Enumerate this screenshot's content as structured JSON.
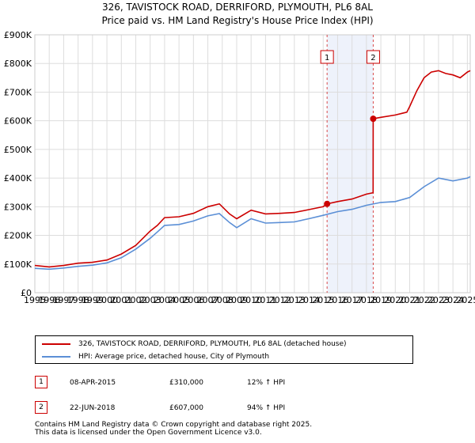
{
  "chart_data": {
    "type": "line",
    "title": "326, TAVISTOCK ROAD, DERRIFORD, PLYMOUTH, PL6 8AL",
    "subtitle": "Price paid vs. HM Land Registry's House Price Index (HPI)",
    "xlim": [
      1995,
      2025.2
    ],
    "ylim": [
      0,
      900000
    ],
    "x_ticks": [
      1995,
      1996,
      1997,
      1998,
      1999,
      2000,
      2001,
      2002,
      2003,
      2004,
      2005,
      2006,
      2007,
      2008,
      2009,
      2010,
      2011,
      2012,
      2013,
      2014,
      2015,
      2016,
      2017,
      2018,
      2019,
      2020,
      2021,
      2022,
      2023,
      2024,
      2025
    ],
    "y_ticks": [
      {
        "value": 0,
        "label": "£0"
      },
      {
        "value": 100000,
        "label": "£100K"
      },
      {
        "value": 200000,
        "label": "£200K"
      },
      {
        "value": 300000,
        "label": "£300K"
      },
      {
        "value": 400000,
        "label": "£400K"
      },
      {
        "value": 500000,
        "label": "£500K"
      },
      {
        "value": 600000,
        "label": "£600K"
      },
      {
        "value": 700000,
        "label": "£700K"
      },
      {
        "value": 800000,
        "label": "£800K"
      },
      {
        "value": 900000,
        "label": "£900K"
      }
    ],
    "grid": true,
    "shaded_region": [
      2015.27,
      2018.47
    ],
    "series": [
      {
        "name": "326, TAVISTOCK ROAD, DERRIFORD, PLYMOUTH, PL6 8AL (detached house)",
        "color": "#cc0000",
        "x": [
          1995,
          1996,
          1997,
          1998,
          1999,
          2000,
          2001,
          2002,
          2003,
          2003.5,
          2004,
          2005,
          2006,
          2007,
          2007.8,
          2008.5,
          2009,
          2010,
          2011,
          2012,
          2013,
          2014,
          2015,
          2015.27,
          2016,
          2017,
          2018,
          2018.46,
          2018.47,
          2019,
          2020,
          2020.8,
          2021,
          2021.5,
          2022,
          2022.5,
          2023,
          2023.5,
          2024,
          2024.5,
          2025,
          2025.2
        ],
        "y": [
          95000,
          90000,
          95000,
          103000,
          106000,
          114000,
          135000,
          165000,
          215000,
          235000,
          262000,
          265000,
          277000,
          300000,
          310000,
          275000,
          258000,
          288000,
          275000,
          277000,
          280000,
          290000,
          300000,
          310000,
          318000,
          327000,
          344000,
          349000,
          607000,
          612000,
          620000,
          630000,
          650000,
          705000,
          750000,
          770000,
          775000,
          765000,
          760000,
          750000,
          770000,
          775000
        ]
      },
      {
        "name": "HPI: Average price, detached house, City of Plymouth",
        "color": "#5b8fd6",
        "x": [
          1995,
          1996,
          1997,
          1998,
          1999,
          2000,
          2001,
          2002,
          2003,
          2003.5,
          2004,
          2005,
          2006,
          2007,
          2007.8,
          2008.5,
          2009,
          2010,
          2011,
          2012,
          2013,
          2014,
          2015,
          2016,
          2017,
          2018,
          2019,
          2020,
          2021,
          2022,
          2023,
          2024,
          2025,
          2025.2
        ],
        "y": [
          85000,
          82000,
          86000,
          92000,
          96000,
          104000,
          122000,
          152000,
          190000,
          212000,
          235000,
          238000,
          250000,
          268000,
          276000,
          245000,
          227000,
          258000,
          243000,
          245000,
          247000,
          258000,
          270000,
          283000,
          291000,
          305000,
          315000,
          318000,
          332000,
          370000,
          400000,
          390000,
          400000,
          405000
        ]
      }
    ],
    "sale_markers": [
      {
        "label": "1",
        "x": 2015.27,
        "y": 310000
      },
      {
        "label": "2",
        "x": 2018.47,
        "y": 607000
      }
    ]
  },
  "legend": {
    "property": "326, TAVISTOCK ROAD, DERRIFORD, PLYMOUTH, PL6 8AL (detached house)",
    "hpi": "HPI: Average price, detached house, City of Plymouth"
  },
  "sales": [
    {
      "num": "1",
      "date": "08-APR-2015",
      "price": "£310,000",
      "hpi": "12% ↑ HPI"
    },
    {
      "num": "2",
      "date": "22-JUN-2018",
      "price": "£607,000",
      "hpi": "94% ↑ HPI"
    }
  ],
  "footer": {
    "line1": "Contains HM Land Registry data © Crown copyright and database right 2025.",
    "line2": "This data is licensed under the Open Government Licence v3.0."
  }
}
